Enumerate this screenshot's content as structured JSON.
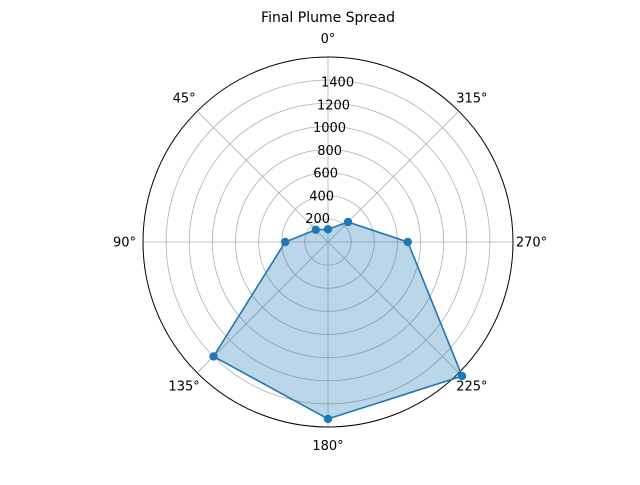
{
  "chart_data": {
    "type": "radar",
    "title": "Final Plume Spread",
    "angle_direction": "counterclockwise",
    "zero_location": "top",
    "angle_ticks": [
      "0°",
      "45°",
      "90°",
      "135°",
      "180°",
      "225°",
      "270°",
      "315°"
    ],
    "radial_ticks": [
      "200",
      "400",
      "600",
      "800",
      "1000",
      "1200",
      "1400"
    ],
    "rlim": [
      0,
      1600
    ],
    "grid": true,
    "series": [
      {
        "theta_deg": [
          0,
          45,
          90,
          135,
          180,
          225,
          270,
          315
        ],
        "values": [
          110,
          150,
          370,
          1400,
          1530,
          1640,
          690,
          245
        ]
      }
    ],
    "colors": {
      "line": "#1f77b4",
      "fill": "#1f77b4",
      "grid": "#b0b0b0",
      "frame": "#000000"
    }
  }
}
